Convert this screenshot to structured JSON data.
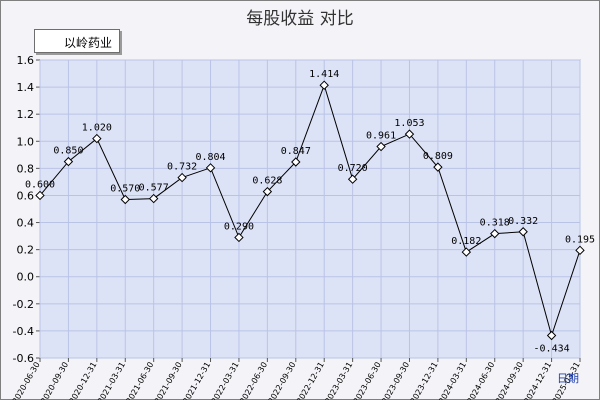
{
  "chart_data": {
    "type": "line",
    "title": "每股收益  对比",
    "xlabel": "日期",
    "ylabel": "",
    "ylim": [
      -0.6,
      1.6
    ],
    "y_ticks": [
      "1.6",
      "1.4",
      "1.2",
      "1.0",
      "0.8",
      "0.6",
      "0.4",
      "0.2",
      "0.0",
      "-0.2",
      "-0.4",
      "-0.6"
    ],
    "grid": true,
    "legend_position": "top-left",
    "categories": [
      "2020-06-30",
      "2020-09-30",
      "2020-12-31",
      "2021-03-31",
      "2021-06-30",
      "2021-09-30",
      "2021-12-31",
      "2022-03-31",
      "2022-06-30",
      "2022-09-30",
      "2022-12-31",
      "2023-03-31",
      "2023-06-30",
      "2023-09-30",
      "2023-12-31",
      "2024-03-31",
      "2024-06-30",
      "2024-09-30",
      "2024-12-31",
      "2025-03-31"
    ],
    "series": [
      {
        "name": "以岭药业",
        "values": [
          0.6,
          0.85,
          1.02,
          0.57,
          0.577,
          0.732,
          0.804,
          0.29,
          0.628,
          0.847,
          1.414,
          0.72,
          0.961,
          1.053,
          0.809,
          0.182,
          0.318,
          0.332,
          -0.434,
          0.195
        ],
        "labels": [
          "0.600",
          "0.850",
          "1.020",
          "0.570",
          "0.577",
          "0.732",
          "0.804",
          "0.290",
          "0.628",
          "0.847",
          "1.414",
          "0.720",
          "0.961",
          "1.053",
          "0.809",
          "0.182",
          "0.318",
          "0.332",
          "-0.434",
          "0.195"
        ]
      }
    ],
    "colors": {
      "plot_bg": "#dde3f7",
      "grid": "#b9c3e6",
      "line": "#000000",
      "marker_fill": "#ffffff",
      "xlabel": "#1f3fb0"
    }
  }
}
